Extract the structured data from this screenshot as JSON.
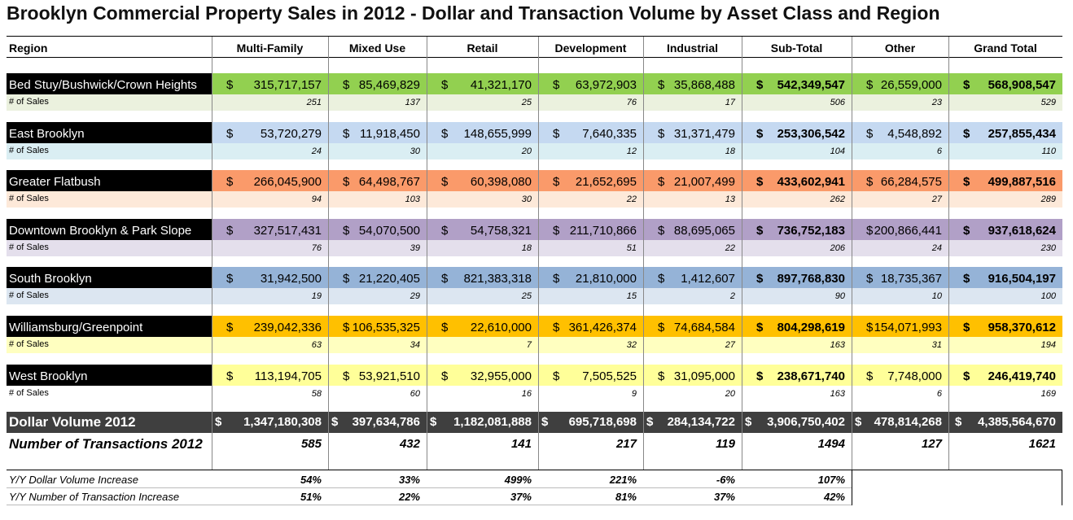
{
  "title": "Brooklyn Commercial Property Sales in 2012 - Dollar and Transaction Volume by Asset Class and Region",
  "columns": [
    "Region",
    "Multi-Family",
    "Mixed Use",
    "Retail",
    "Development",
    "Industrial",
    "Sub-Total",
    "Other",
    "Grand Total"
  ],
  "currency": "$",
  "sales_label": "# of Sales",
  "regions": [
    {
      "name": "Bed Stuy/Bushwick/Crown Heights",
      "color": "#92d050",
      "sales_color": "#ebf1de",
      "dollars": [
        "315,717,157",
        "85,469,829",
        "41,321,170",
        "63,972,903",
        "35,868,488",
        "542,349,547",
        "26,559,000",
        "568,908,547"
      ],
      "sales": [
        251,
        137,
        25,
        76,
        17,
        506,
        23,
        529
      ]
    },
    {
      "name": "East Brooklyn",
      "color": "#c5d9f1",
      "sales_color": "#daeef3",
      "dollars": [
        "53,720,279",
        "11,918,450",
        "148,655,999",
        "7,640,335",
        "31,371,479",
        "253,306,542",
        "4,548,892",
        "257,855,434"
      ],
      "sales": [
        24,
        30,
        20,
        12,
        18,
        104,
        6,
        110
      ]
    },
    {
      "name": "Greater Flatbush",
      "color": "#fa9a6a",
      "sales_color": "#fde9d9",
      "dollars": [
        "266,045,900",
        "64,498,767",
        "60,398,080",
        "21,652,695",
        "21,007,499",
        "433,602,941",
        "66,284,575",
        "499,887,516"
      ],
      "sales": [
        94,
        103,
        30,
        22,
        13,
        262,
        27,
        289
      ]
    },
    {
      "name": "Downtown Brooklyn & Park Slope",
      "color": "#b1a0c7",
      "sales_color": "#e4dfec",
      "dollars": [
        "327,517,431",
        "54,070,500",
        "54,758,321",
        "211,710,866",
        "88,695,065",
        "736,752,183",
        "200,866,441",
        "937,618,624"
      ],
      "sales": [
        76,
        39,
        18,
        51,
        22,
        206,
        24,
        230
      ]
    },
    {
      "name": "South Brooklyn",
      "color": "#95b3d7",
      "sales_color": "#dce6f1",
      "dollars": [
        "31,942,500",
        "21,220,405",
        "821,383,318",
        "21,810,000",
        "1,412,607",
        "897,768,830",
        "18,735,367",
        "916,504,197"
      ],
      "sales": [
        19,
        29,
        25,
        15,
        2,
        90,
        10,
        100
      ]
    },
    {
      "name": "Williamsburg/Greenpoint",
      "color": "#ffc000",
      "sales_color": "#ffffc0",
      "dollars": [
        "239,042,336",
        "106,535,325",
        "22,610,000",
        "361,426,374",
        "74,684,584",
        "804,298,619",
        "154,071,993",
        "958,370,612"
      ],
      "sales": [
        63,
        34,
        7,
        32,
        27,
        163,
        31,
        194
      ]
    },
    {
      "name": "West Brooklyn",
      "color": "#ffff99",
      "sales_color": "#ffffff",
      "dollars": [
        "113,194,705",
        "53,921,510",
        "32,955,000",
        "7,505,525",
        "31,095,000",
        "238,671,740",
        "7,748,000",
        "246,419,740"
      ],
      "sales": [
        58,
        60,
        16,
        9,
        20,
        163,
        6,
        169
      ]
    }
  ],
  "totals": {
    "dollar_label": "Dollar Volume 2012",
    "dollars": [
      "1,347,180,308",
      "397,634,786",
      "1,182,081,888",
      "695,718,698",
      "284,134,722",
      "3,906,750,402",
      "478,814,268",
      "4,385,564,670"
    ],
    "transactions_label": "Number of Transactions 2012",
    "transactions": [
      585,
      432,
      141,
      217,
      119,
      1494,
      127,
      1621
    ]
  },
  "yoy": [
    {
      "label": "Y/Y Dollar Volume Increase",
      "values": [
        "54%",
        "33%",
        "499%",
        "221%",
        "-6%",
        "107%"
      ]
    },
    {
      "label": "Y/Y Number of Transaction Increase",
      "values": [
        "51%",
        "22%",
        "37%",
        "81%",
        "37%",
        "42%"
      ]
    }
  ]
}
